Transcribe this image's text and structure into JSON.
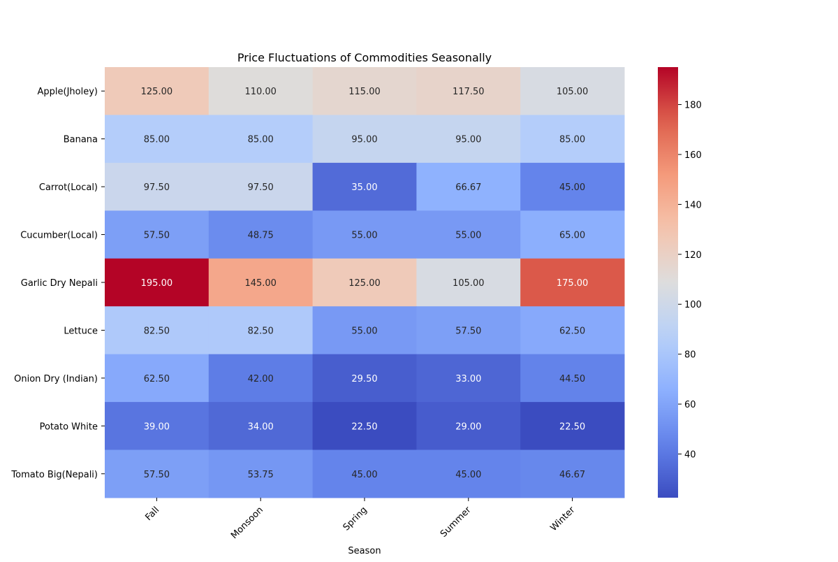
{
  "chart_data": {
    "type": "heatmap",
    "title": "Price Fluctuations of Commodities Seasonally",
    "xlabel": "Season",
    "ylabel": "",
    "x_categories": [
      "Fall",
      "Monsoon",
      "Spring",
      "Summer",
      "Winter"
    ],
    "y_categories": [
      "Apple(Jholey)",
      "Banana",
      "Carrot(Local)",
      "Cucumber(Local)",
      "Garlic Dry Nepali",
      "Lettuce",
      "Onion Dry (Indian)",
      "Potato White",
      "Tomato Big(Nepali)"
    ],
    "values": [
      [
        125.0,
        110.0,
        115.0,
        117.5,
        105.0
      ],
      [
        85.0,
        85.0,
        95.0,
        95.0,
        85.0
      ],
      [
        97.5,
        97.5,
        35.0,
        66.67,
        45.0
      ],
      [
        57.5,
        48.75,
        55.0,
        55.0,
        65.0
      ],
      [
        195.0,
        145.0,
        125.0,
        105.0,
        175.0
      ],
      [
        82.5,
        82.5,
        55.0,
        57.5,
        62.5
      ],
      [
        62.5,
        42.0,
        29.5,
        33.0,
        44.5
      ],
      [
        39.0,
        34.0,
        22.5,
        29.0,
        22.5
      ],
      [
        57.5,
        53.75,
        45.0,
        45.0,
        46.67
      ]
    ],
    "value_format": "2 decimals",
    "colormap": "coolwarm",
    "vmin": 22.5,
    "vmax": 195.0,
    "colorbar_ticks": [
      40,
      60,
      80,
      100,
      120,
      140,
      160,
      180
    ],
    "x_tick_rotation": "45 degrees",
    "grid": false,
    "legend": "colorbar right"
  }
}
